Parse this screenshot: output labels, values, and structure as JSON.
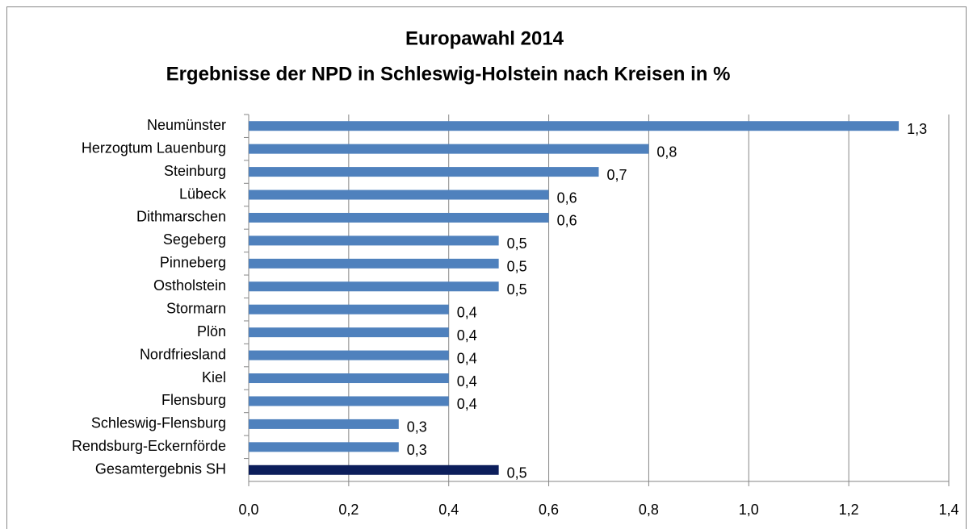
{
  "chart_data": {
    "type": "bar",
    "orientation": "horizontal",
    "title": "Europawahl 2014",
    "subtitle": "Ergebnisse der NPD in Schleswig-Holstein nach Kreisen in %",
    "categories": [
      "Neumünster",
      "Herzogtum Lauenburg",
      "Steinburg",
      "Lübeck",
      "Dithmarschen",
      "Segeberg",
      "Pinneberg",
      "Ostholstein",
      "Stormarn",
      "Plön",
      "Nordfriesland",
      "Kiel",
      "Flensburg",
      "Schleswig-Flensburg",
      "Rendsburg-Eckernförde",
      "Gesamtergebnis SH"
    ],
    "values": [
      1.3,
      0.8,
      0.7,
      0.6,
      0.6,
      0.5,
      0.5,
      0.5,
      0.4,
      0.4,
      0.4,
      0.4,
      0.4,
      0.3,
      0.3,
      0.5
    ],
    "value_labels": [
      "1,3",
      "0,8",
      "0,7",
      "0,6",
      "0,6",
      "0,5",
      "0,5",
      "0,5",
      "0,4",
      "0,4",
      "0,4",
      "0,4",
      "0,4",
      "0,3",
      "0,3",
      "0,5"
    ],
    "colors": [
      "#4f81bd",
      "#4f81bd",
      "#4f81bd",
      "#4f81bd",
      "#4f81bd",
      "#4f81bd",
      "#4f81bd",
      "#4f81bd",
      "#4f81bd",
      "#4f81bd",
      "#4f81bd",
      "#4f81bd",
      "#4f81bd",
      "#4f81bd",
      "#4f81bd",
      "#0c1e5b"
    ],
    "xlim": [
      0,
      1.4
    ],
    "xticks": [
      {
        "value": 0,
        "label": "0,0"
      },
      {
        "value": 0.2,
        "label": "0,2"
      },
      {
        "value": 0.4,
        "label": "0,4"
      },
      {
        "value": 0.6,
        "label": "0,6"
      },
      {
        "value": 0.8,
        "label": "0,8"
      },
      {
        "value": 1.0,
        "label": "1,0"
      },
      {
        "value": 1.2,
        "label": "1,2"
      },
      {
        "value": 1.4,
        "label": "1,4"
      }
    ],
    "grid": true
  }
}
